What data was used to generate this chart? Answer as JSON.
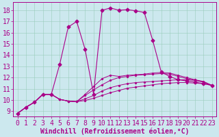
{
  "xlabel": "Windchill (Refroidissement éolien,°C)",
  "bg_color": "#cce8ee",
  "line_color": "#aa0088",
  "grid_color": "#99ccbb",
  "xlim": [
    -0.5,
    23.5
  ],
  "ylim": [
    8.5,
    18.7
  ],
  "xticks": [
    0,
    1,
    2,
    3,
    4,
    5,
    6,
    7,
    8,
    9,
    10,
    11,
    12,
    13,
    14,
    15,
    16,
    17,
    18,
    19,
    20,
    21,
    22,
    23
  ],
  "yticks": [
    9,
    10,
    11,
    12,
    13,
    14,
    15,
    16,
    17,
    18
  ],
  "series": [
    [
      8.8,
      9.35,
      9.8,
      10.5,
      10.5,
      10.05,
      9.9,
      9.85,
      9.95,
      10.15,
      10.4,
      10.65,
      10.85,
      11.05,
      11.15,
      11.25,
      11.35,
      11.45,
      11.5,
      11.55,
      11.55,
      11.5,
      11.45,
      11.3
    ],
    [
      8.8,
      9.35,
      9.8,
      10.5,
      10.5,
      10.05,
      9.9,
      9.85,
      10.1,
      10.4,
      10.8,
      11.1,
      11.3,
      11.45,
      11.55,
      11.6,
      11.65,
      11.7,
      11.75,
      11.8,
      11.8,
      11.75,
      11.6,
      11.3
    ],
    [
      8.8,
      9.35,
      9.8,
      10.5,
      10.5,
      10.05,
      9.9,
      9.85,
      10.4,
      10.9,
      11.35,
      11.75,
      12.0,
      12.1,
      12.2,
      12.25,
      12.3,
      12.35,
      12.3,
      12.1,
      11.9,
      11.75,
      11.6,
      11.3
    ],
    [
      8.8,
      9.35,
      9.8,
      10.5,
      10.5,
      10.05,
      9.9,
      9.85,
      10.5,
      11.2,
      11.9,
      12.2,
      12.1,
      12.2,
      12.25,
      12.3,
      12.4,
      12.45,
      12.4,
      12.2,
      12.0,
      11.8,
      11.65,
      11.3
    ]
  ],
  "peaked_series": [
    8.8,
    9.35,
    9.8,
    10.5,
    10.5,
    13.2,
    16.5,
    17.0,
    14.5,
    10.5,
    18.0,
    18.2,
    18.0,
    18.05,
    17.95,
    17.8,
    15.3,
    12.5,
    12.1,
    11.8,
    11.7,
    11.6,
    11.45,
    11.3
  ],
  "font_size": 7
}
